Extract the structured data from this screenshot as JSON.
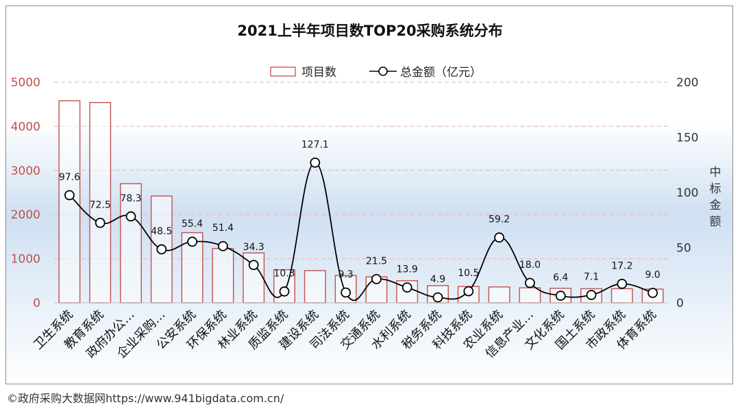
{
  "footer": {
    "copyright": "©政府采购大数据网https://www.941bigdata.com.cn/"
  },
  "colors": {
    "bar_stroke": "#c0504d",
    "bar_fill_top": "#ffffff",
    "bar_fill_bottom": "#ffffff",
    "line": "#000000",
    "marker_fill": "#ffffff",
    "grid": "#e6b3b3",
    "left_axis_text": "#c0504d",
    "right_axis_text": "#333333",
    "bg_top": "#ffffff",
    "bg_mid": "#cfe0f2",
    "bg_bottom": "#ffffff"
  },
  "chart_data": {
    "type": "bar+line",
    "title": "2021上半年项目数TOP20采购系统分布",
    "categories": [
      "卫生系统",
      "教育系统",
      "政府办公…",
      "企业采购…",
      "公安系统",
      "环保系统",
      "林业系统",
      "质监系统",
      "建设系统",
      "司法系统",
      "交通系统",
      "水利系统",
      "税务系统",
      "科技系统",
      "农业系统",
      "信息产业…",
      "文化系统",
      "国土系统",
      "市政系统",
      "体育系统"
    ],
    "series": [
      {
        "name": "项目数",
        "kind": "bar",
        "axis": "left",
        "values": [
          4580,
          4540,
          2700,
          2420,
          1590,
          1230,
          1130,
          750,
          730,
          620,
          590,
          500,
          390,
          370,
          360,
          340,
          330,
          320,
          320,
          310
        ]
      },
      {
        "name": "总金额（亿元）",
        "kind": "line",
        "axis": "right",
        "values": [
          97.6,
          72.5,
          78.3,
          48.5,
          55.4,
          51.4,
          34.3,
          10.3,
          127.1,
          9.3,
          21.5,
          13.9,
          4.9,
          10.5,
          59.2,
          18.0,
          6.4,
          7.1,
          17.2,
          9.0
        ],
        "labels": [
          "97.6",
          "72.5",
          "78.3",
          "48.5",
          "55.4",
          "51.4",
          "34.3",
          "10.3",
          "127.1",
          "9.3",
          "21.5",
          "13.9",
          "4.9",
          "10.5",
          "59.2",
          "18.0",
          "6.4",
          "7.1",
          "17.2",
          "9.0"
        ]
      }
    ],
    "left_axis": {
      "ylim": [
        0,
        5000
      ],
      "ticks": [
        "0",
        "1000",
        "2000",
        "3000",
        "4000",
        "5000"
      ],
      "tick_values": [
        0,
        1000,
        2000,
        3000,
        4000,
        5000
      ]
    },
    "right_axis": {
      "ylim": [
        0,
        200
      ],
      "ticks": [
        "0",
        "50",
        "100",
        "150",
        "200"
      ],
      "tick_values": [
        0,
        50,
        100,
        150,
        200
      ],
      "label": "中标金额"
    },
    "legend": {
      "position": "top-center",
      "entries": [
        "项目数",
        "总金额（亿元）"
      ]
    },
    "grid": true
  }
}
